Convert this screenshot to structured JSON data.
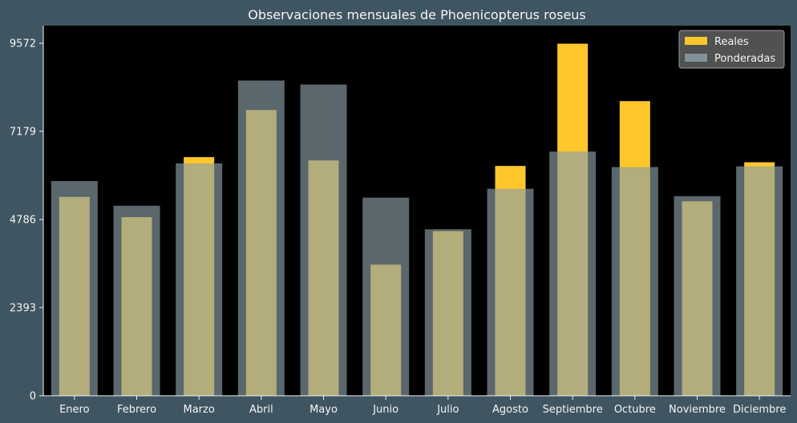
{
  "chart_data": {
    "type": "bar",
    "title": "Observaciones mensuales de Phoenicopterus roseus",
    "xlabel": "",
    "ylabel": "",
    "categories": [
      "Enero",
      "Febrero",
      "Marzo",
      "Abril",
      "Mayo",
      "Junio",
      "Julio",
      "Agosto",
      "Septiembre",
      "Octubre",
      "Noviembre",
      "Diciembre"
    ],
    "series": [
      {
        "name": "Reales",
        "color": "#ffc72c",
        "values": [
          5400,
          4850,
          6480,
          7760,
          6390,
          3560,
          4470,
          6240,
          9560,
          8000,
          5280,
          6340
        ]
      },
      {
        "name": "Ponderadas",
        "color": "#8a9ea6",
        "values": [
          5830,
          5160,
          6310,
          8560,
          8450,
          5380,
          4520,
          5620,
          6630,
          6210,
          5420,
          6230
        ]
      }
    ],
    "ylim": [
      0,
      10050
    ],
    "yticks": [
      0,
      2393,
      4786,
      7179,
      9572
    ],
    "ytick_labels": [
      "0",
      "2393",
      "4786",
      "7179",
      "9572"
    ],
    "grid": false,
    "legend_position": "top-right"
  }
}
